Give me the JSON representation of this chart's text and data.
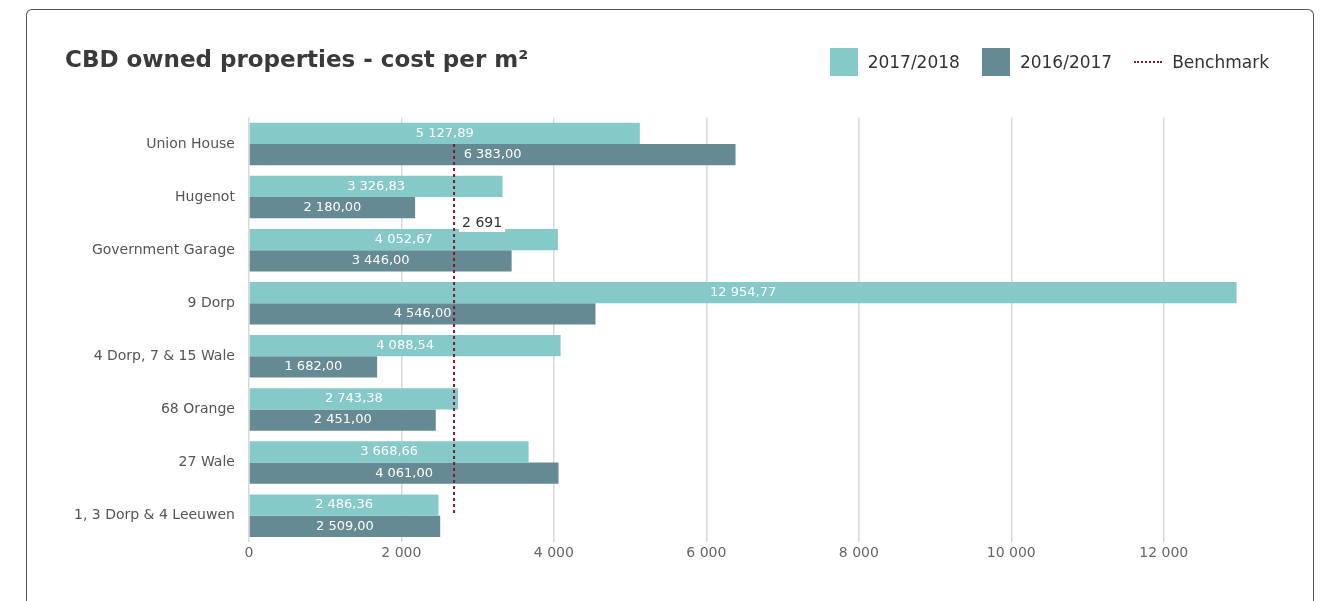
{
  "chart_data": {
    "type": "bar",
    "orientation": "horizontal",
    "title": "CBD owned properties - cost per m²",
    "categories": [
      "Union House",
      "Hugenot",
      "Government Garage",
      "9 Dorp",
      "4 Dorp, 7 & 15 Wale",
      "68 Orange",
      "27 Wale",
      "1, 3 Dorp & 4 Leeuwen"
    ],
    "series": [
      {
        "name": "2017/2018",
        "color": "#85c9c8",
        "values": [
          5127.89,
          3326.83,
          4052.67,
          12954.77,
          4088.54,
          2743.38,
          3668.66,
          2486.36
        ],
        "value_labels": [
          "5 127,89",
          "3 326,83",
          "4 052,67",
          "12 954,77",
          "4 088,54",
          "2 743,38",
          "3 668,66",
          "2 486,36"
        ]
      },
      {
        "name": "2016/2017",
        "color": "#668a94",
        "values": [
          6383,
          2180,
          3446,
          4546,
          1682,
          2451,
          4061,
          2509
        ],
        "value_labels": [
          "6 383,00",
          "2 180,00",
          "3 446,00",
          "4 546,00",
          "1 682,00",
          "2 451,00",
          "4 061,00",
          "2 509,00"
        ]
      },
      {
        "name": "Benchmark",
        "type": "line",
        "color": "#7b1c2a",
        "line_style": "dotted",
        "values": [
          2691,
          2691,
          2691,
          2691,
          2691,
          2691,
          2691,
          2691
        ]
      }
    ],
    "xlim": [
      0,
      13000
    ],
    "xticks": [
      0,
      {
        "value": 2000,
        "label": "2 000"
      },
      {
        "value": 4000,
        "label": "4 000"
      },
      {
        "value": 6000,
        "label": "6 000"
      },
      {
        "value": 8000,
        "label": "8 000"
      },
      {
        "value": 10000,
        "label": "10 000"
      },
      {
        "value": 12000,
        "label": "12 000"
      }
    ],
    "annotations": [
      {
        "text": "2 691",
        "x": 2691,
        "y": "Hugenot"
      }
    ],
    "grid": "x",
    "legend": "top right"
  }
}
